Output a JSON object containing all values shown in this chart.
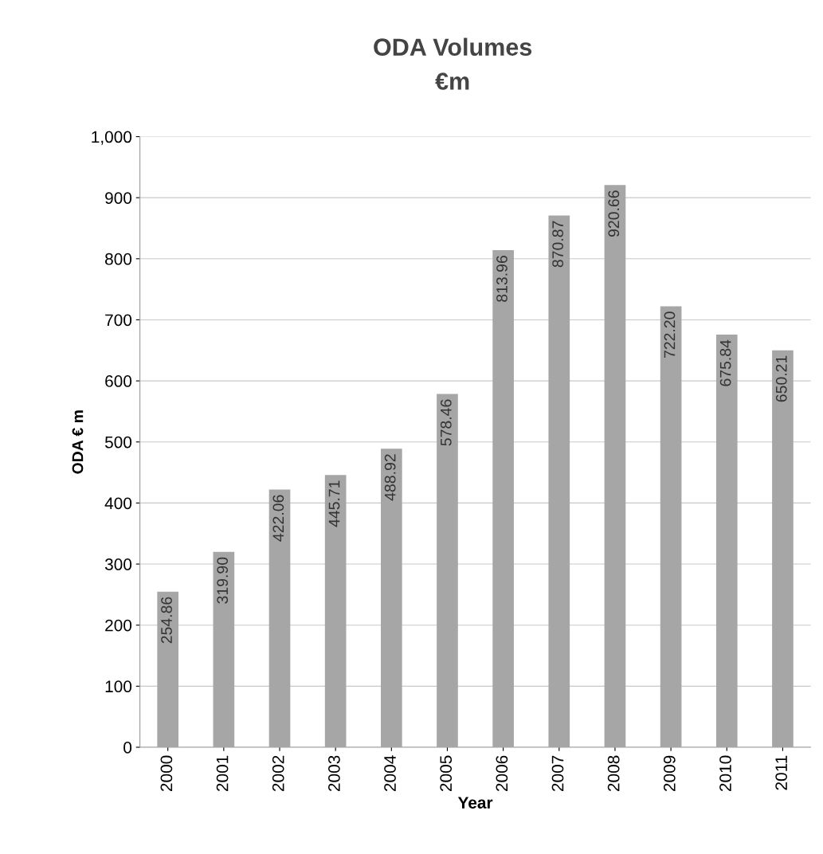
{
  "chart_data": {
    "type": "bar",
    "title": "ODA Volumes",
    "subtitle": "€m",
    "xlabel": "Year",
    "ylabel": "ODA € m",
    "categories": [
      "2000",
      "2001",
      "2002",
      "2003",
      "2004",
      "2005",
      "2006",
      "2007",
      "2008",
      "2009",
      "2010",
      "2011"
    ],
    "values": [
      254.86,
      319.9,
      422.06,
      445.71,
      488.92,
      578.46,
      813.96,
      870.87,
      920.66,
      722.2,
      675.84,
      650.21
    ],
    "value_labels": [
      "254.86",
      "319.90",
      "422.06",
      "445.71",
      "488.92",
      "578.46",
      "813.96",
      "870.87",
      "920.66",
      "722.20",
      "675.84",
      "650.21"
    ],
    "color": "#a6a6a6",
    "ylim": [
      0,
      1000
    ],
    "yticks": [
      0,
      100,
      200,
      300,
      400,
      500,
      600,
      700,
      800,
      900,
      {
        "value": 1000,
        "label": "1,000"
      }
    ],
    "grid": "y",
    "legend": false
  }
}
